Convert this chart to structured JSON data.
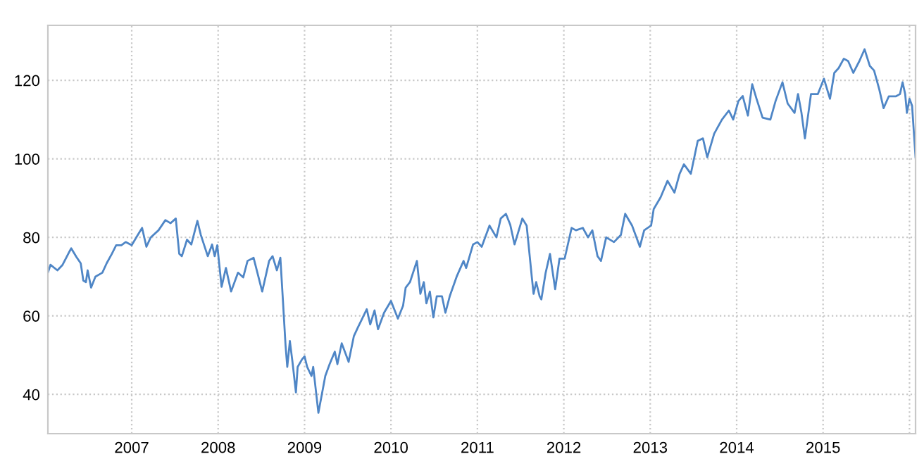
{
  "chart_data": {
    "type": "line",
    "x": [
      2006.03,
      2006.06,
      2006.14,
      2006.2,
      2006.28,
      2006.3,
      2006.36,
      2006.41,
      2006.44,
      2006.47,
      2006.49,
      2006.53,
      2006.58,
      2006.66,
      2006.71,
      2006.77,
      2006.82,
      2006.88,
      2006.93,
      2007.0,
      2007.07,
      2007.12,
      2007.17,
      2007.22,
      2007.31,
      2007.39,
      2007.45,
      2007.51,
      2007.55,
      2007.58,
      2007.64,
      2007.69,
      2007.76,
      2007.8,
      2007.88,
      2007.93,
      2007.96,
      2007.99,
      2008.04,
      2008.09,
      2008.15,
      2008.23,
      2008.29,
      2008.34,
      2008.41,
      2008.51,
      2008.59,
      2008.63,
      2008.68,
      2008.72,
      2008.75,
      2008.78,
      2008.8,
      2008.83,
      2008.86,
      2008.9,
      2008.92,
      2008.97,
      2009.0,
      2009.03,
      2009.08,
      2009.1,
      2009.16,
      2009.24,
      2009.29,
      2009.35,
      2009.38,
      2009.43,
      2009.51,
      2009.57,
      2009.62,
      2009.66,
      2009.72,
      2009.76,
      2009.81,
      2009.85,
      2009.92,
      2010.0,
      2010.08,
      2010.14,
      2010.17,
      2010.22,
      2010.3,
      2010.34,
      2010.38,
      2010.41,
      2010.45,
      2010.49,
      2010.53,
      2010.59,
      2010.63,
      2010.68,
      2010.76,
      2010.84,
      2010.87,
      2010.95,
      2011.0,
      2011.05,
      2011.14,
      2011.22,
      2011.27,
      2011.33,
      2011.38,
      2011.43,
      2011.52,
      2011.57,
      2011.63,
      2011.65,
      2011.68,
      2011.72,
      2011.74,
      2011.79,
      2011.84,
      2011.9,
      2011.95,
      2012.01,
      2012.09,
      2012.14,
      2012.22,
      2012.28,
      2012.33,
      2012.39,
      2012.43,
      2012.49,
      2012.58,
      2012.66,
      2012.71,
      2012.79,
      2012.88,
      2012.93,
      2013.01,
      2013.04,
      2013.12,
      2013.2,
      2013.28,
      2013.34,
      2013.39,
      2013.47,
      2013.55,
      2013.61,
      2013.66,
      2013.74,
      2013.83,
      2013.91,
      2013.96,
      2014.02,
      2014.07,
      2014.13,
      2014.18,
      2014.23,
      2014.3,
      2014.39,
      2014.45,
      2014.53,
      2014.59,
      2014.67,
      2014.71,
      2014.75,
      2014.79,
      2014.86,
      2014.94,
      2015.01,
      2015.08,
      2015.13,
      2015.18,
      2015.24,
      2015.29,
      2015.35,
      2015.42,
      2015.48,
      2015.54,
      2015.59,
      2015.65,
      2015.7,
      2015.76,
      2015.84,
      2015.89,
      2015.92,
      2015.95,
      2015.97,
      2016.0,
      2016.03,
      2016.07
    ],
    "series": [
      {
        "color": "#4f86c6",
        "values": [
          71,
          73,
          71.6,
          73,
          76.4,
          77.2,
          75,
          73.4,
          69,
          68.6,
          71.6,
          67.2,
          70,
          71,
          73.4,
          75.8,
          78,
          78,
          78.8,
          78,
          80.6,
          82.4,
          77.6,
          80,
          81.8,
          84.4,
          83.6,
          84.8,
          75.8,
          75.2,
          79.4,
          78.2,
          84.2,
          80.6,
          75.2,
          78.2,
          75.2,
          78,
          67.4,
          72.2,
          66.2,
          71,
          69.8,
          74,
          74.8,
          66.2,
          74,
          75.2,
          71.6,
          74.8,
          63.8,
          52.5,
          47,
          53.6,
          48.3,
          40.5,
          47,
          48.9,
          49.7,
          47,
          44.7,
          47,
          35.3,
          44.7,
          47.7,
          50.9,
          47.7,
          53,
          48.3,
          54.8,
          57.2,
          59,
          61.7,
          57.8,
          61.4,
          56.6,
          60.8,
          63.8,
          59.3,
          62.6,
          67.2,
          68.6,
          74,
          65.6,
          68.6,
          63.2,
          66.2,
          59.6,
          65,
          65,
          60.8,
          65,
          70,
          74,
          72.2,
          78.2,
          78.8,
          77.6,
          83,
          80,
          84.8,
          86,
          83.2,
          78.2,
          84.8,
          83,
          69.8,
          65.6,
          68.6,
          65,
          64.2,
          71,
          75.8,
          66.8,
          74.6,
          74.6,
          82.4,
          81.8,
          82.4,
          80,
          81.8,
          75.2,
          74,
          80,
          78.8,
          80.6,
          86,
          83,
          77.6,
          81.8,
          83,
          87.2,
          90.2,
          94.4,
          91.4,
          96.2,
          98.6,
          96.2,
          104.6,
          105.2,
          100.4,
          106.4,
          110,
          112.3,
          110,
          114.7,
          116,
          111,
          119,
          115.3,
          110.5,
          110,
          114.7,
          119.5,
          114.1,
          111.7,
          116.5,
          111.7,
          105.2,
          116.5,
          116.5,
          120.4,
          115.3,
          121.9,
          123.1,
          125.5,
          124.9,
          121.9,
          124.9,
          127.9,
          123.7,
          122.5,
          117.7,
          112.9,
          115.9,
          115.9,
          116.5,
          119.5,
          116.5,
          111.7,
          115.3,
          113.5,
          100.4
        ]
      }
    ],
    "xlim": [
      2006.03,
      2016.07
    ],
    "xticks": [
      2007,
      2008,
      2009,
      2010,
      2011,
      2012,
      2013,
      2014,
      2015,
      {
        "value": 2016,
        "label": null
      }
    ],
    "ylim": [
      30,
      134
    ],
    "yticks": [
      40,
      60,
      80,
      100,
      120
    ],
    "grid": true,
    "marker": "none",
    "line_style": "solid"
  }
}
